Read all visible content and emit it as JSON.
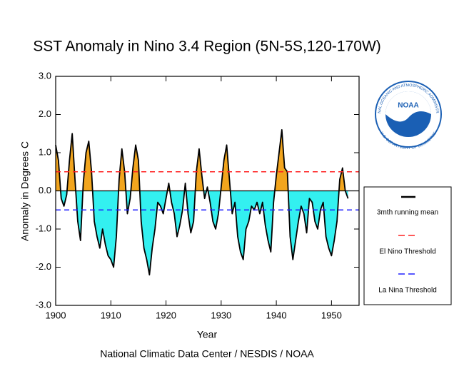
{
  "chart_data": {
    "type": "area",
    "title": "SST Anomaly in Nino 3.4 Region (5N-5S,120-170W)",
    "xlabel": "Year",
    "ylabel": "Anomaly in Degrees C",
    "footer": "National Climatic Data Center / NESDIS / NOAA",
    "logo": {
      "name": "NOAA",
      "top_text": "NATIONAL OCEANIC AND ATMOSPHERIC ADMINISTRATION",
      "bottom_text": "U.S. DEPARTMENT OF COMMERCE"
    },
    "xlim": [
      1900,
      1955
    ],
    "ylim": [
      -3.0,
      3.0
    ],
    "xticks": [
      1900,
      1910,
      1920,
      1930,
      1940,
      1950
    ],
    "yticks": [
      {
        "value": -3.0,
        "label": "-3.0"
      },
      {
        "value": -2.0,
        "label": "-2.0"
      },
      {
        "value": -1.0,
        "label": "-1.0"
      },
      {
        "value": 0.0,
        "label": "0.0"
      },
      {
        "value": 1.0,
        "label": "1.0"
      },
      {
        "value": 2.0,
        "label": "2.0"
      },
      {
        "value": 3.0,
        "label": "3.0"
      }
    ],
    "positive_color": "#f2a51e",
    "negative_color": "#33f0f0",
    "x": [
      1900,
      1900.5,
      1901,
      1901.5,
      1902,
      1902.5,
      1903,
      1903.5,
      1904,
      1904.5,
      1905,
      1905.5,
      1906,
      1906.5,
      1907,
      1907.5,
      1908,
      1908.5,
      1909,
      1909.5,
      1910,
      1910.5,
      1911,
      1911.5,
      1912,
      1912.5,
      1913,
      1913.5,
      1914,
      1914.5,
      1915,
      1915.5,
      1916,
      1916.5,
      1917,
      1917.5,
      1918,
      1918.5,
      1919,
      1919.5,
      1920,
      1920.5,
      1921,
      1921.5,
      1922,
      1922.5,
      1923,
      1923.5,
      1924,
      1924.5,
      1925,
      1925.5,
      1926,
      1926.5,
      1927,
      1927.5,
      1928,
      1928.5,
      1929,
      1929.5,
      1930,
      1930.5,
      1931,
      1931.5,
      1932,
      1932.5,
      1933,
      1933.5,
      1934,
      1934.5,
      1935,
      1935.5,
      1936,
      1936.5,
      1937,
      1937.5,
      1938,
      1938.5,
      1939,
      1939.5,
      1940,
      1940.5,
      1941,
      1941.5,
      1942,
      1942.5,
      1943,
      1943.5,
      1944,
      1944.5,
      1945,
      1945.5,
      1946,
      1946.5,
      1947,
      1947.5,
      1948,
      1948.5,
      1949,
      1949.5,
      1950,
      1950.5,
      1951,
      1951.5,
      1952,
      1952.5,
      1953
    ],
    "series": [
      {
        "name": "3mth running mean",
        "color": "#000000",
        "values": [
          1.2,
          0.8,
          -0.2,
          -0.4,
          -0.1,
          0.8,
          1.5,
          0.3,
          -0.8,
          -1.3,
          0.2,
          1.0,
          1.3,
          0.5,
          -0.8,
          -1.2,
          -1.5,
          -1.0,
          -1.4,
          -1.7,
          -1.8,
          -2.0,
          -1.2,
          0.3,
          1.1,
          0.5,
          -0.6,
          -0.2,
          0.6,
          1.2,
          0.8,
          -0.8,
          -1.5,
          -1.8,
          -2.2,
          -1.5,
          -1.0,
          -0.3,
          -0.4,
          -0.6,
          -0.2,
          0.2,
          -0.3,
          -0.6,
          -1.2,
          -0.9,
          -0.5,
          0.2,
          -0.6,
          -1.1,
          -0.8,
          0.5,
          1.1,
          0.4,
          -0.2,
          0.1,
          -0.3,
          -0.8,
          -1.0,
          -0.6,
          0.1,
          0.8,
          1.2,
          0.3,
          -0.6,
          -0.3,
          -1.2,
          -1.6,
          -1.8,
          -1.0,
          -0.8,
          -0.4,
          -0.5,
          -0.3,
          -0.6,
          -0.3,
          -0.9,
          -1.3,
          -1.6,
          -0.3,
          0.4,
          1.0,
          1.6,
          0.6,
          0.5,
          -1.2,
          -1.8,
          -1.3,
          -0.8,
          -0.4,
          -0.6,
          -1.1,
          -0.2,
          -0.3,
          -0.8,
          -1.0,
          -0.5,
          -0.3,
          -1.2,
          -1.5,
          -1.7,
          -1.3,
          -0.8,
          0.3,
          0.6,
          0.0,
          -0.2
        ]
      }
    ],
    "thresholds": [
      {
        "name": "El Nino Threshold",
        "value": 0.5,
        "color": "#ff2020"
      },
      {
        "name": "La Nina Threshold",
        "value": -0.5,
        "color": "#2020ff"
      }
    ]
  }
}
